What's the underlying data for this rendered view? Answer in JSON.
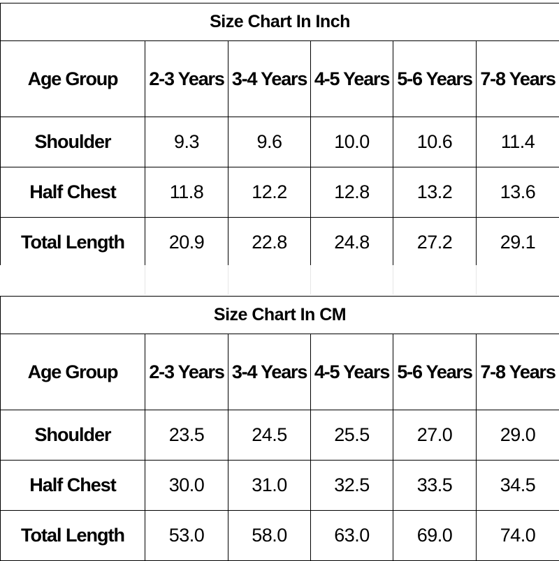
{
  "tables": [
    {
      "title": "Size Chart In Inch",
      "header_label": "Age Group",
      "columns": [
        "2-3 Years",
        "3-4 Years",
        "4-5 Years",
        "5-6 Years",
        "7-8 Years"
      ],
      "rows": [
        {
          "label": "Shoulder",
          "values": [
            "9.3",
            "9.6",
            "10.0",
            "10.6",
            "11.4"
          ]
        },
        {
          "label": "Half Chest",
          "values": [
            "11.8",
            "12.2",
            "12.8",
            "13.2",
            "13.6"
          ]
        },
        {
          "label": "Total Length",
          "values": [
            "20.9",
            "22.8",
            "24.8",
            "27.2",
            "29.1"
          ]
        }
      ]
    },
    {
      "title": "Size Chart In CM",
      "header_label": "Age Group",
      "columns": [
        "2-3 Years",
        "3-4 Years",
        "4-5 Years",
        "5-6 Years",
        "7-8 Years"
      ],
      "rows": [
        {
          "label": "Shoulder",
          "values": [
            "23.5",
            "24.5",
            "25.5",
            "27.0",
            "29.0"
          ]
        },
        {
          "label": "Half Chest",
          "values": [
            "30.0",
            "31.0",
            "32.5",
            "33.5",
            "34.5"
          ]
        },
        {
          "label": "Total Length",
          "values": [
            "53.0",
            "58.0",
            "63.0",
            "69.0",
            "74.0"
          ]
        }
      ]
    }
  ]
}
